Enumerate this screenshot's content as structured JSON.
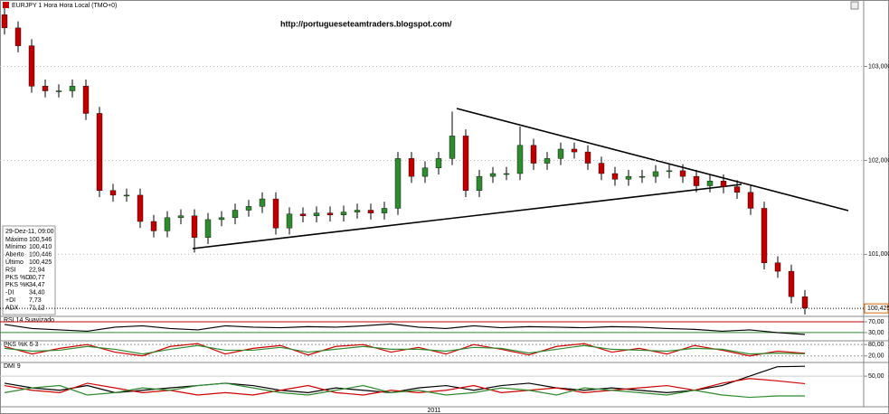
{
  "page": {
    "title": "EURJPY 1 Hora Hora Local (TMO+0)",
    "annotation": "http://portugueseteamtraders.blogspot.com/",
    "x_axis_label": "2011",
    "info_box": {
      "header": "29-Dez-11, 09:00",
      "rows": [
        {
          "label": "Máximo",
          "value": "100,546"
        },
        {
          "label": "Mínimo",
          "value": "100,410"
        },
        {
          "label": "Aberto",
          "value": "100,446"
        },
        {
          "label": "Último",
          "value": "100,425"
        },
        {
          "label": "RSI",
          "value": "22,94"
        },
        {
          "label": "PKS %D",
          "value": "30,77"
        },
        {
          "label": "PKS %K",
          "value": "34,47"
        },
        {
          "label": "-DI",
          "value": "34,40"
        },
        {
          "label": "+DI",
          "value": "7,73"
        },
        {
          "label": "ADX",
          "value": "71,12"
        }
      ]
    }
  },
  "chart_data": [
    {
      "type": "candlestick",
      "up_color": "#2e8b2e",
      "down_color": "#c00000",
      "ylim": [
        100.34,
        103.63
      ],
      "yticks": [
        {
          "value": 101,
          "label": "101,000"
        },
        {
          "value": 102,
          "label": "102,000"
        },
        {
          "value": 103,
          "label": "103,000"
        }
      ],
      "last_price": {
        "value": 100.425,
        "label": "100,425"
      },
      "open": [
        103.55,
        103.41,
        103.22,
        102.79,
        102.74,
        102.74,
        102.79,
        102.5,
        101.68,
        101.63,
        101.63,
        101.35,
        101.25,
        101.39,
        101.41,
        101.18,
        101.37,
        101.39,
        101.47,
        101.51,
        101.59,
        101.28,
        101.43,
        101.41,
        101.44,
        101.42,
        101.45,
        101.47,
        101.44,
        101.49,
        102.02,
        101.83,
        101.92,
        102.02,
        102.26,
        101.68,
        101.83,
        101.86,
        101.86,
        102.16,
        101.97,
        102.02,
        102.12,
        102.09,
        101.97,
        101.86,
        101.8,
        101.83,
        101.83,
        101.88,
        101.89,
        101.83,
        101.73,
        101.78,
        101.72,
        101.66,
        101.49,
        100.91,
        100.82,
        100.55
      ],
      "high": [
        103.62,
        103.48,
        103.29,
        102.86,
        102.81,
        102.86,
        102.86,
        102.57,
        101.75,
        101.7,
        101.7,
        101.42,
        101.46,
        101.48,
        101.48,
        101.44,
        101.46,
        101.54,
        101.58,
        101.66,
        101.66,
        101.5,
        101.5,
        101.51,
        101.51,
        101.52,
        101.54,
        101.54,
        101.56,
        102.09,
        102.09,
        101.99,
        102.09,
        102.52,
        102.33,
        101.9,
        101.93,
        101.93,
        102.36,
        102.23,
        102.09,
        102.19,
        102.19,
        102.16,
        102.04,
        101.93,
        101.9,
        101.9,
        101.95,
        101.96,
        101.96,
        101.9,
        101.85,
        101.85,
        101.79,
        101.73,
        101.56,
        100.98,
        100.89,
        100.62
      ],
      "low": [
        103.34,
        103.15,
        102.72,
        102.67,
        102.67,
        102.67,
        102.43,
        101.61,
        101.56,
        101.56,
        101.28,
        101.18,
        101.18,
        101.32,
        101.02,
        101.11,
        101.3,
        101.32,
        101.4,
        101.44,
        101.21,
        101.21,
        101.34,
        101.34,
        101.35,
        101.35,
        101.38,
        101.37,
        101.37,
        101.42,
        101.76,
        101.76,
        101.85,
        101.95,
        101.61,
        101.61,
        101.76,
        101.79,
        101.79,
        101.9,
        101.9,
        101.95,
        102.02,
        101.9,
        101.79,
        101.73,
        101.73,
        101.76,
        101.76,
        101.81,
        101.76,
        101.66,
        101.66,
        101.65,
        101.59,
        101.42,
        100.84,
        100.75,
        100.48,
        100.36
      ],
      "close": [
        103.41,
        103.22,
        102.79,
        102.74,
        102.74,
        102.79,
        102.5,
        101.68,
        101.63,
        101.63,
        101.35,
        101.25,
        101.39,
        101.41,
        101.18,
        101.37,
        101.39,
        101.47,
        101.51,
        101.59,
        101.28,
        101.43,
        101.41,
        101.44,
        101.42,
        101.45,
        101.47,
        101.44,
        101.49,
        102.02,
        101.83,
        101.92,
        102.02,
        102.26,
        101.68,
        101.83,
        101.86,
        101.86,
        102.16,
        101.97,
        102.02,
        102.12,
        102.09,
        101.97,
        101.86,
        101.8,
        101.83,
        101.83,
        101.88,
        101.89,
        101.83,
        101.73,
        101.78,
        101.72,
        101.66,
        101.49,
        100.91,
        100.82,
        100.55,
        100.43
      ]
    },
    {
      "type": "line",
      "title": "RSI 14 Suavizado",
      "ylim": [
        3,
        90
      ],
      "yticks": [
        {
          "value": 30,
          "label": "30,00"
        },
        {
          "value": 70,
          "label": "70,00"
        }
      ],
      "tick_colors": [
        "#2e8b2e",
        "#c00000"
      ],
      "series": [
        {
          "color": "#000000",
          "values": [
            60,
            45,
            40,
            35,
            50,
            55,
            45,
            40,
            55,
            50,
            48,
            52,
            50,
            55,
            62,
            50,
            45,
            55,
            48,
            52,
            50,
            48,
            52,
            50,
            45,
            42,
            35,
            40,
            30,
            23
          ]
        }
      ]
    },
    {
      "type": "line",
      "title": "PKS %K 5 3",
      "ylim": [
        -10,
        100
      ],
      "yticks": [
        {
          "value": 20,
          "label": "20,00"
        },
        {
          "value": 80,
          "label": "80,00"
        }
      ],
      "tick_colors": [
        "#999999",
        "#999999"
      ],
      "series": [
        {
          "color": "#d00000",
          "values": [
            70,
            30,
            60,
            80,
            40,
            20,
            70,
            85,
            30,
            60,
            75,
            25,
            70,
            80,
            40,
            65,
            30,
            80,
            55,
            25,
            70,
            85,
            40,
            60,
            30,
            75,
            50,
            20,
            45,
            34
          ]
        },
        {
          "color": "#2e8b2e",
          "values": [
            60,
            45,
            50,
            70,
            55,
            30,
            55,
            75,
            50,
            50,
            65,
            40,
            55,
            70,
            55,
            55,
            45,
            65,
            60,
            35,
            55,
            75,
            55,
            50,
            45,
            60,
            55,
            30,
            35,
            31
          ]
        }
      ]
    },
    {
      "type": "line",
      "title": "DMI 9",
      "ylim": [
        -15,
        79
      ],
      "yticks": [
        {
          "value": 50,
          "label": "50,00"
        }
      ],
      "tick_colors": [
        "#cccccc"
      ],
      "series": [
        {
          "color": "#000000",
          "values": [
            35,
            25,
            20,
            30,
            15,
            20,
            25,
            30,
            35,
            30,
            20,
            15,
            25,
            20,
            15,
            25,
            30,
            20,
            30,
            35,
            25,
            20,
            25,
            20,
            15,
            20,
            30,
            50,
            70,
            71
          ]
        },
        {
          "color": "#d00000",
          "values": [
            30,
            20,
            15,
            35,
            25,
            15,
            20,
            10,
            15,
            10,
            20,
            30,
            15,
            10,
            20,
            15,
            20,
            30,
            15,
            20,
            25,
            15,
            20,
            25,
            30,
            20,
            35,
            45,
            40,
            34
          ]
        },
        {
          "color": "#2e8b2e",
          "values": [
            15,
            25,
            30,
            10,
            15,
            25,
            20,
            30,
            35,
            25,
            15,
            10,
            20,
            30,
            15,
            20,
            10,
            15,
            25,
            20,
            10,
            25,
            20,
            15,
            10,
            20,
            10,
            5,
            8,
            8
          ]
        }
      ]
    }
  ]
}
